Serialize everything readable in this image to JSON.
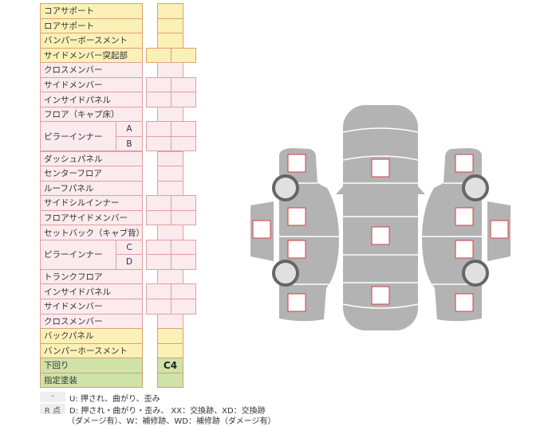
{
  "rows": [
    {
      "label": "コアサポート",
      "color": "yellow",
      "cells": "single"
    },
    {
      "label": "ロアサポート",
      "color": "yellow",
      "cells": "single"
    },
    {
      "label": "バンパーボースメント",
      "color": "yellow",
      "cells": "single"
    },
    {
      "label": "サイドメンバー突起部",
      "color": "yellow",
      "cells": "double"
    },
    {
      "label": "クロスメンバー",
      "color": "pink",
      "cells": "single"
    },
    {
      "label": "サイドメンバー",
      "color": "pink",
      "cells": "double"
    },
    {
      "label": "インサイドパネル",
      "color": "pink",
      "cells": "double"
    },
    {
      "label": "フロア（キャブ床）",
      "color": "pink",
      "cells": "single"
    },
    {
      "label": "ピラーインナー",
      "sub": [
        "A",
        "B"
      ],
      "color": "pink",
      "cells": "double"
    },
    {
      "label": "ダッシュパネル",
      "color": "pink",
      "cells": "single"
    },
    {
      "label": "センターフロア",
      "color": "pink",
      "cells": "single"
    },
    {
      "label": "ルーフパネル",
      "color": "pink",
      "cells": "single"
    },
    {
      "label": "サイドシルインナー",
      "color": "pink",
      "cells": "double"
    },
    {
      "label": "フロアサイドメンバー",
      "color": "pink",
      "cells": "double"
    },
    {
      "label": "セットバック（キャブ背）",
      "color": "pink",
      "cells": "single"
    },
    {
      "label": "ピラーインナー",
      "sub": [
        "C",
        "D"
      ],
      "color": "pink",
      "cells": "double"
    },
    {
      "label": "トランクフロア",
      "color": "pink",
      "cells": "single"
    },
    {
      "label": "インサイドパネル",
      "color": "pink",
      "cells": "double"
    },
    {
      "label": "サイドメンバー",
      "color": "pink",
      "cells": "double"
    },
    {
      "label": "クロスメンバー",
      "color": "pink",
      "cells": "single"
    },
    {
      "label": "バックパネル",
      "color": "yellow",
      "cells": "single"
    },
    {
      "label": "バンパーホースメント",
      "color": "yellow",
      "cells": "single"
    },
    {
      "label": "下回り",
      "color": "green",
      "cells": "single",
      "value": "C4"
    },
    {
      "label": "指定塗装",
      "color": "green",
      "cells": "single"
    }
  ],
  "legend": [
    {
      "key": "-",
      "lines": [
        "U: 押され、曲がり、歪み"
      ]
    },
    {
      "key": "R 点",
      "lines": [
        "D: 押され・曲がり・歪み、 XX：交換跡、XD：交換跡",
        "（ダメージ有）、W：補修跡、WD：補修跡（ダメージ有）"
      ]
    }
  ],
  "diagram": {
    "body_color": "#b3b3b3",
    "marker_border": "#d04040",
    "wheel_color": "#666666"
  }
}
